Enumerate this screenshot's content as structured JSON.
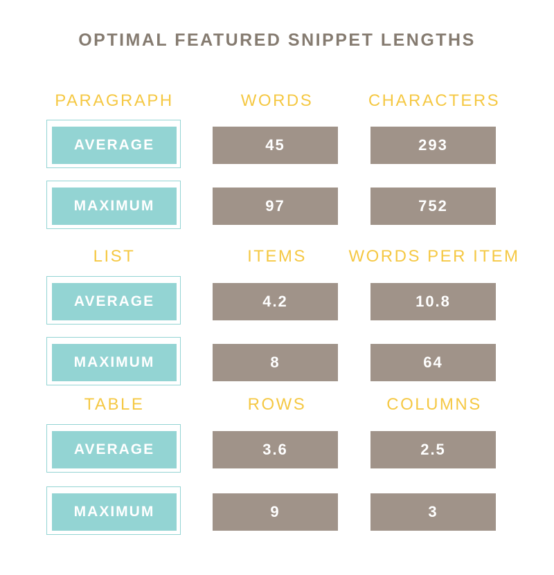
{
  "title": "OPTIMAL FEATURED SNIPPET LENGTHS",
  "colors": {
    "title": "#857b70",
    "header": "#f5c843",
    "label_box": "#93d4d3",
    "value_box": "#a09389"
  },
  "sections": [
    {
      "name": "PARAGRAPH",
      "col1": "WORDS",
      "col2": "CHARACTERS",
      "rows": [
        {
          "label": "AVERAGE",
          "v1": "45",
          "v2": "293"
        },
        {
          "label": "MAXIMUM",
          "v1": "97",
          "v2": "752"
        }
      ]
    },
    {
      "name": "LIST",
      "col1": "ITEMS",
      "col2": "WORDS PER ITEM",
      "rows": [
        {
          "label": "AVERAGE",
          "v1": "4.2",
          "v2": "10.8"
        },
        {
          "label": "MAXIMUM",
          "v1": "8",
          "v2": "64"
        }
      ]
    },
    {
      "name": "TABLE",
      "col1": "ROWS",
      "col2": "COLUMNS",
      "rows": [
        {
          "label": "AVERAGE",
          "v1": "3.6",
          "v2": "2.5"
        },
        {
          "label": "MAXIMUM",
          "v1": "9",
          "v2": "3"
        }
      ]
    }
  ]
}
